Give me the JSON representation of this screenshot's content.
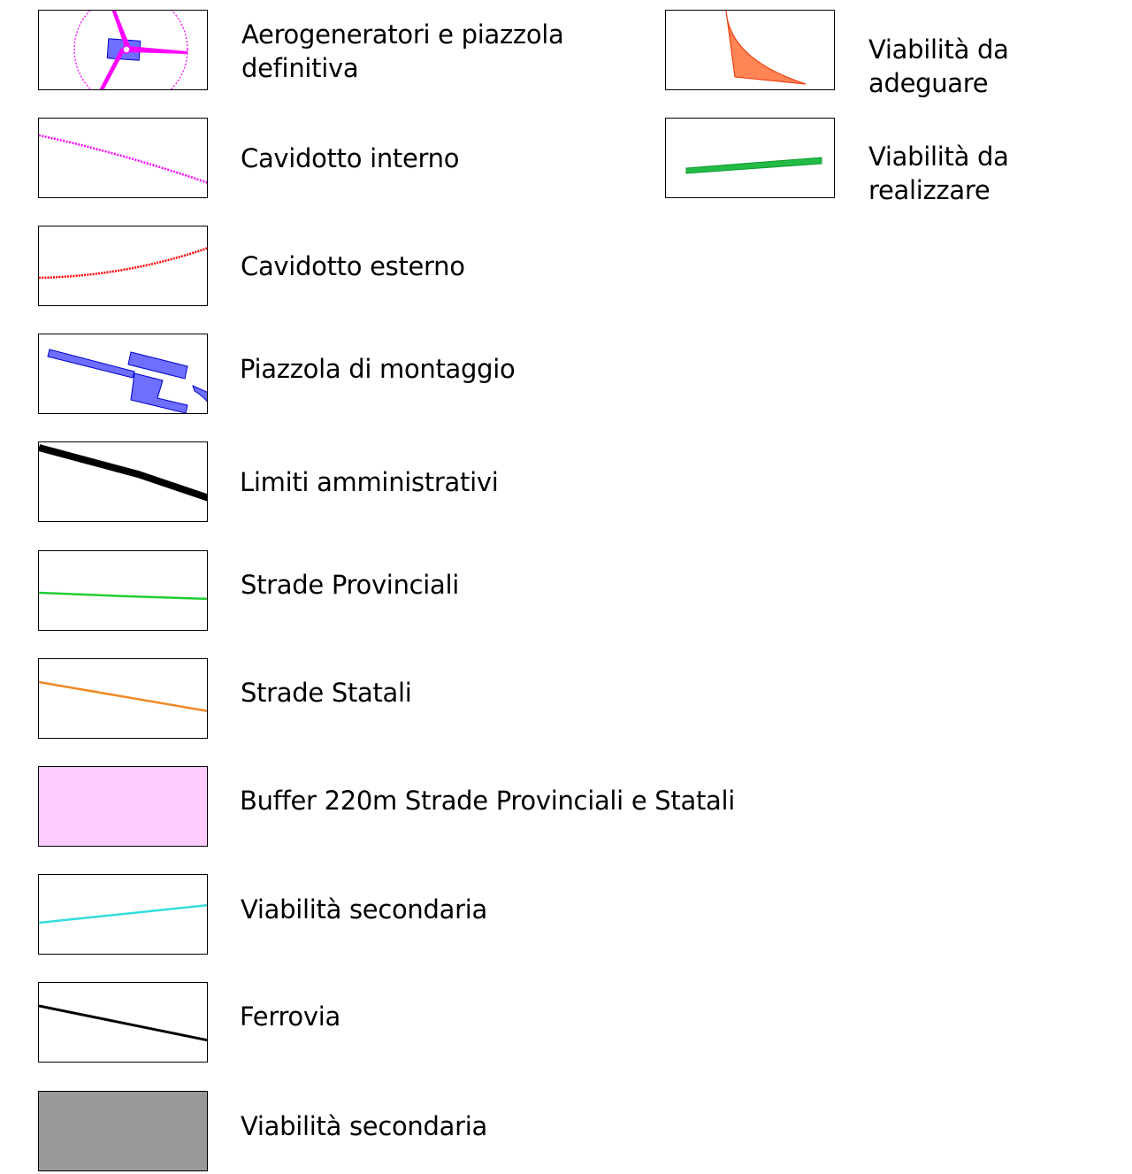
{
  "legend": {
    "items": [
      {
        "label": "Aerogeneratori e piazzola\ndefinitiva",
        "symbol": "wind-turbine-icon"
      },
      {
        "label": "Cavidotto interno",
        "symbol": "dotted-line",
        "color": "#ff00ff"
      },
      {
        "label": "Cavidotto esterno",
        "symbol": "dotted-line",
        "color": "#ff0000"
      },
      {
        "label": "Piazzola di montaggio",
        "symbol": "polygon",
        "color": "#3333ff"
      },
      {
        "label": "Limiti amministrativi",
        "symbol": "thick-line",
        "color": "#000000"
      },
      {
        "label": "Strade Provinciali",
        "symbol": "line",
        "color": "#22cc33"
      },
      {
        "label": "Strade Statali",
        "symbol": "line",
        "color": "#ee8822"
      },
      {
        "label": "Buffer 220m Strade Provinciali e Statali",
        "symbol": "fill",
        "color": "#ffccff"
      },
      {
        "label": "Viabilità secondaria",
        "symbol": "line",
        "color": "#33dddd"
      },
      {
        "label": "Ferrovia",
        "symbol": "line",
        "color": "#000000"
      },
      {
        "label": "Viabilità secondaria",
        "symbol": "fill",
        "color": "#999999"
      },
      {
        "label": "Viabilità da adeguare",
        "symbol": "polygon",
        "color": "#ff6633"
      },
      {
        "label": "Viabilità da realizzare",
        "symbol": "thick-line",
        "color": "#22bb44"
      }
    ]
  }
}
